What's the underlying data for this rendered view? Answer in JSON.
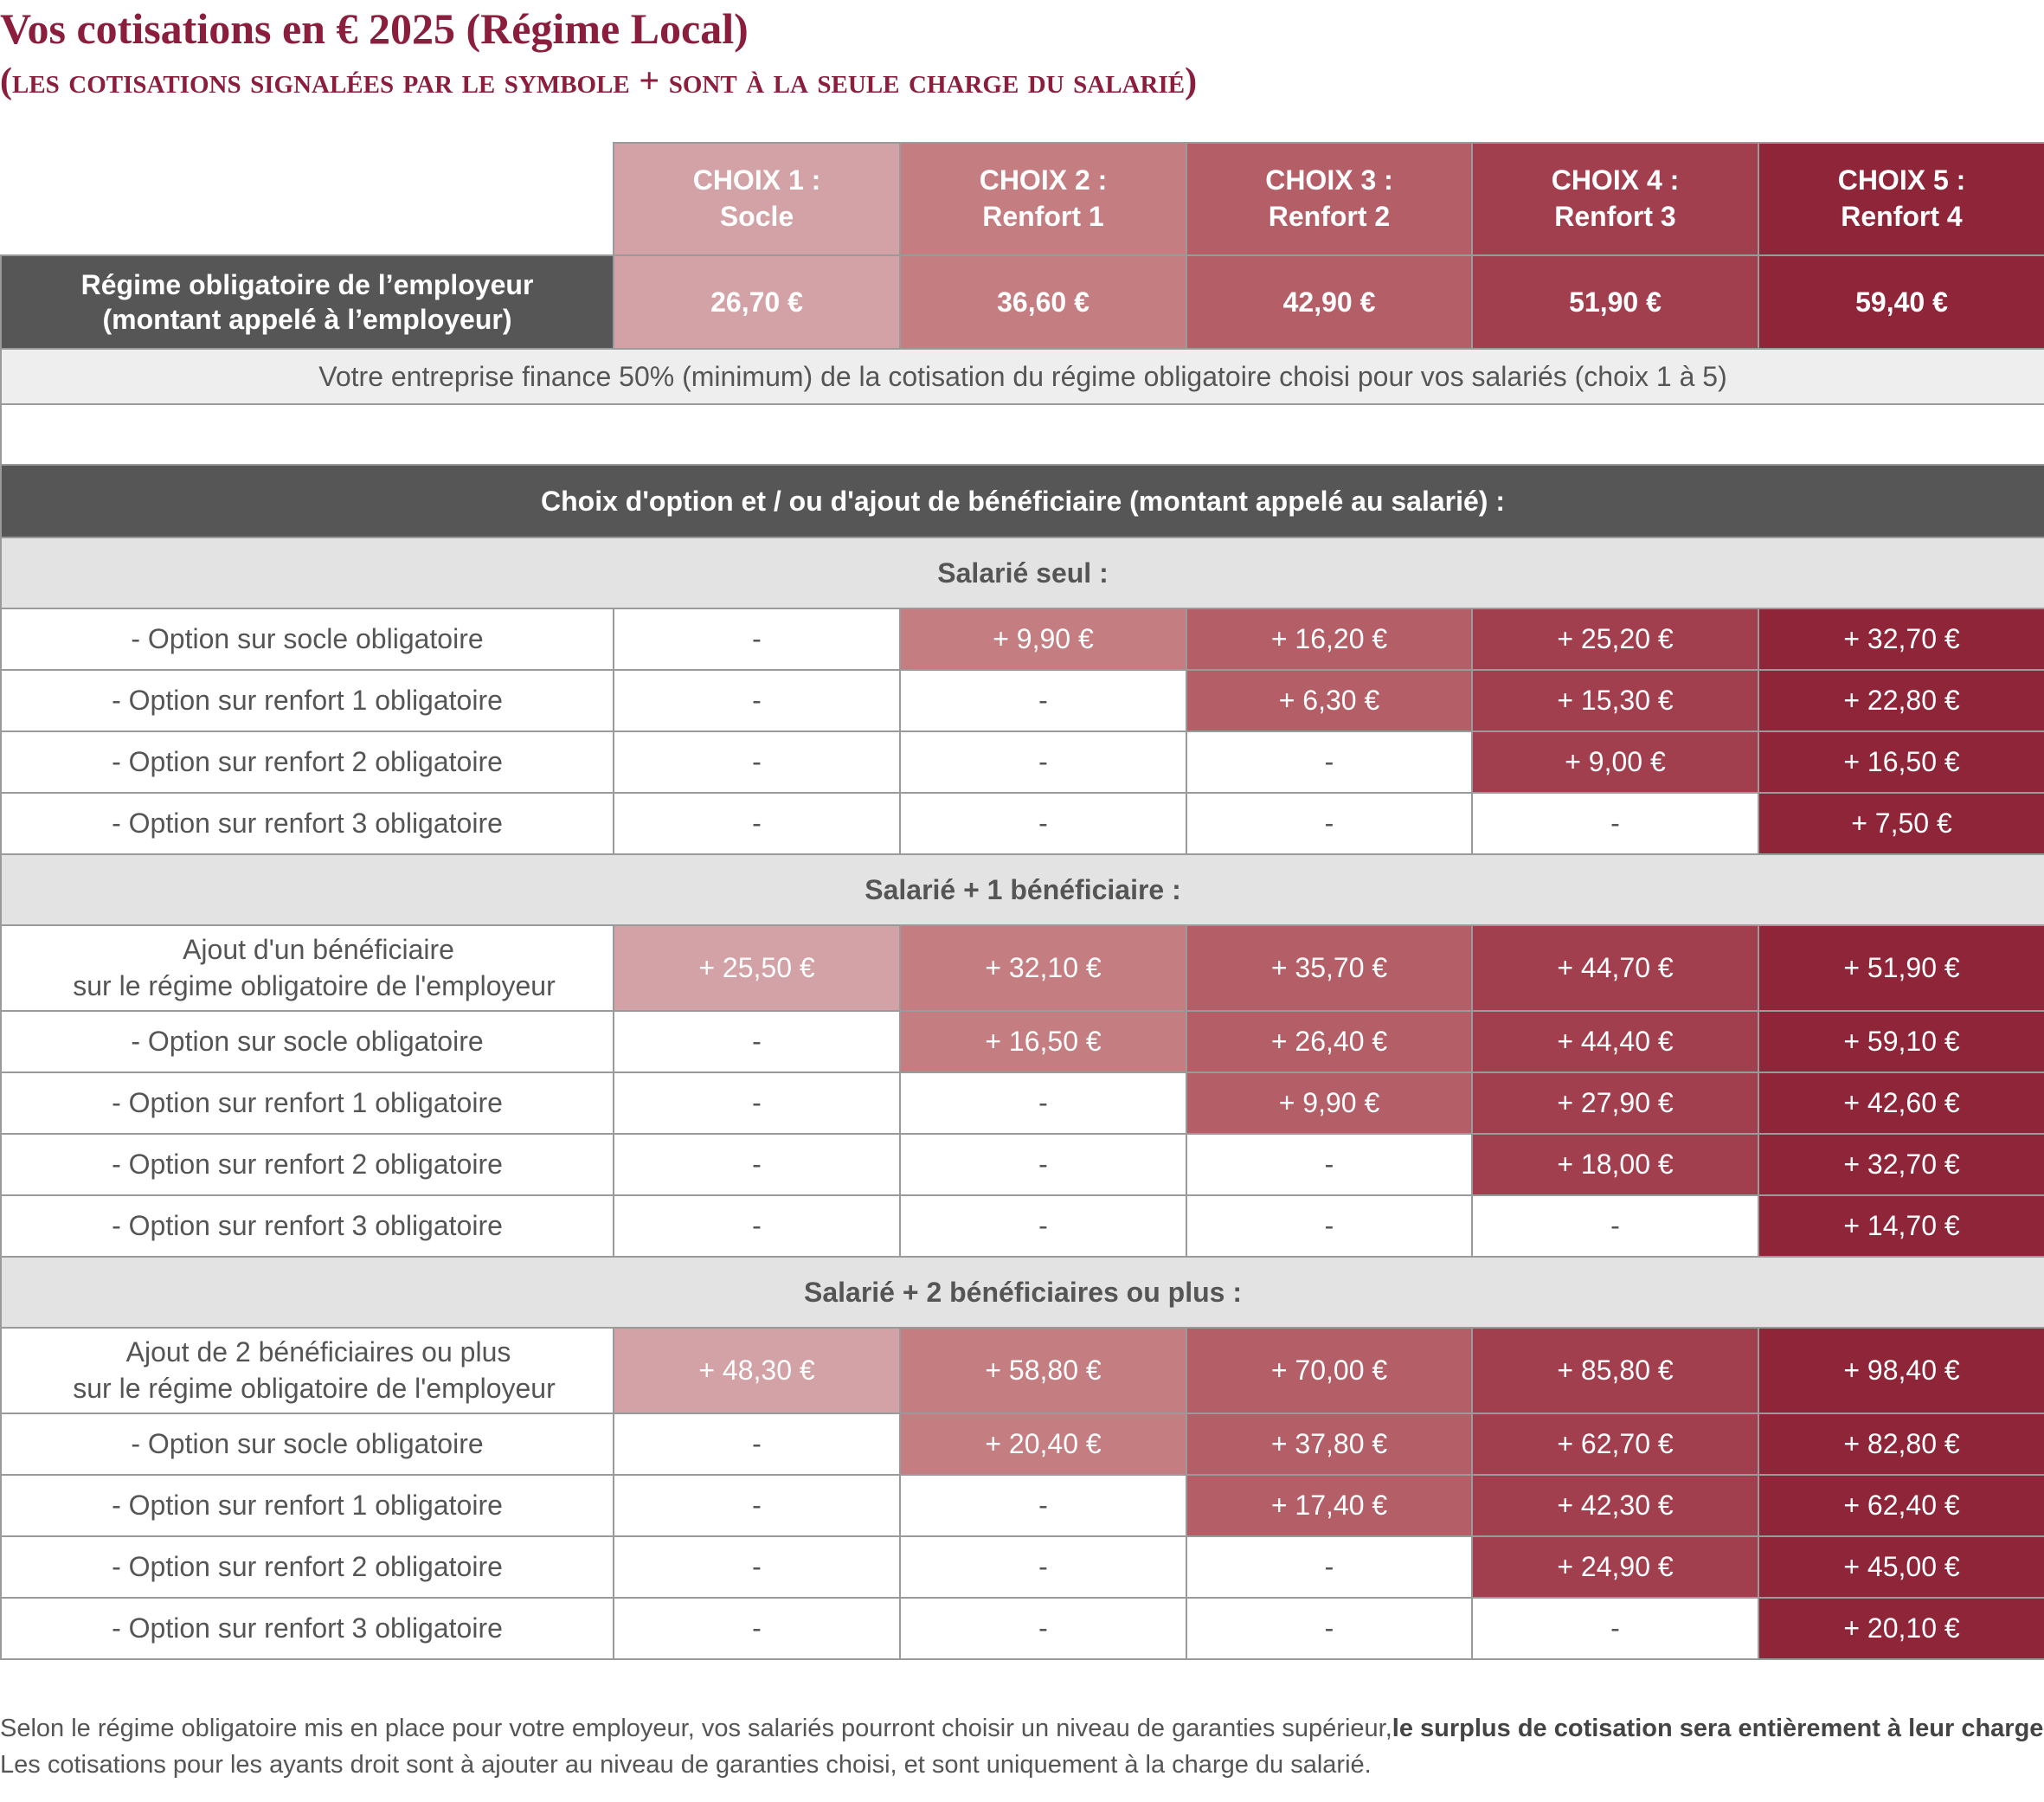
{
  "header": {
    "title": "Vos cotisations en € 2025 (Régime Local)",
    "subtitle": "(les cotisations signalées par le symbole + sont à la seule charge du salarié)"
  },
  "colors": {
    "brand": "#8a1e3c",
    "choix_1": "#d3a2a6",
    "choix_2": "#c47d81",
    "choix_3": "#b45e67",
    "choix_4": "#a23f4f",
    "choix_5": "#8e2539",
    "dark_header": "#565656",
    "group_header": "#e3e3e3"
  },
  "choices": [
    {
      "line1": "CHOIX 1 :",
      "line2": "Socle"
    },
    {
      "line1": "CHOIX 2 :",
      "line2": "Renfort 1"
    },
    {
      "line1": "CHOIX 3 :",
      "line2": "Renfort 2"
    },
    {
      "line1": "CHOIX 4 :",
      "line2": "Renfort 3"
    },
    {
      "line1": "CHOIX 5 :",
      "line2": "Renfort 4"
    }
  ],
  "employer": {
    "label_line1": "Régime obligatoire de l’employeur",
    "label_line2": "(montant appelé à l’employeur)",
    "values": [
      "26,70 €",
      "36,60 €",
      "42,90 €",
      "51,90 €",
      "59,40 €"
    ]
  },
  "note": "Votre entreprise finance 50% (minimum) de la cotisation du régime obligatoire choisi pour vos salariés (choix 1 à 5)",
  "option_header": "Choix d'option et / ou d'ajout de bénéficiaire (montant appelé au salarié) :",
  "groups": [
    {
      "title": "Salarié seul :",
      "rows": [
        {
          "label": "- Option sur socle obligatoire",
          "values": [
            "-",
            "+ 9,90 €",
            "+ 16,20 €",
            "+ 25,20 €",
            "+ 32,70 €"
          ]
        },
        {
          "label": "- Option sur renfort 1 obligatoire",
          "values": [
            "-",
            "-",
            "+ 6,30 €",
            "+ 15,30 €",
            "+ 22,80 €"
          ]
        },
        {
          "label": "- Option sur renfort 2 obligatoire",
          "values": [
            "-",
            "-",
            "-",
            "+ 9,00 €",
            "+ 16,50 €"
          ]
        },
        {
          "label": "- Option sur renfort 3 obligatoire",
          "values": [
            "-",
            "-",
            "-",
            "-",
            "+ 7,50 €"
          ]
        }
      ]
    },
    {
      "title": "Salarié + 1 bénéficiaire :",
      "add_row": {
        "label_line1": "Ajout d'un bénéficiaire",
        "label_line2": "sur le régime obligatoire de l'employeur",
        "values": [
          "+ 25,50 €",
          "+ 32,10 €",
          "+ 35,70 €",
          "+ 44,70 €",
          "+ 51,90 €"
        ]
      },
      "rows": [
        {
          "label": "- Option sur socle obligatoire",
          "values": [
            "-",
            "+ 16,50 €",
            "+ 26,40 €",
            "+ 44,40 €",
            "+ 59,10 €"
          ]
        },
        {
          "label": "- Option sur renfort 1 obligatoire",
          "values": [
            "-",
            "-",
            "+ 9,90 €",
            "+ 27,90 €",
            "+ 42,60 €"
          ]
        },
        {
          "label": "- Option sur renfort 2 obligatoire",
          "values": [
            "-",
            "-",
            "-",
            "+ 18,00 €",
            "+ 32,70 €"
          ]
        },
        {
          "label": "- Option sur renfort 3 obligatoire",
          "values": [
            "-",
            "-",
            "-",
            "-",
            "+ 14,70 €"
          ]
        }
      ]
    },
    {
      "title": "Salarié + 2 bénéficiaires ou plus :",
      "add_row": {
        "label_line1": "Ajout de 2 bénéficiaires ou plus",
        "label_line2": "sur le régime obligatoire de l'employeur",
        "values": [
          "+ 48,30 €",
          "+ 58,80 €",
          "+ 70,00 €",
          "+ 85,80 €",
          "+ 98,40 €"
        ]
      },
      "rows": [
        {
          "label": "- Option sur socle obligatoire",
          "values": [
            "-",
            "+ 20,40 €",
            "+ 37,80 €",
            "+ 62,70 €",
            "+ 82,80 €"
          ]
        },
        {
          "label": "- Option sur renfort 1 obligatoire",
          "values": [
            "-",
            "-",
            "+ 17,40 €",
            "+ 42,30 €",
            "+ 62,40 €"
          ]
        },
        {
          "label": "- Option sur renfort 2 obligatoire",
          "values": [
            "-",
            "-",
            "-",
            "+ 24,90 €",
            "+ 45,00 €"
          ]
        },
        {
          "label": "- Option sur renfort 3 obligatoire",
          "values": [
            "-",
            "-",
            "-",
            "-",
            "+ 20,10 €"
          ]
        }
      ]
    }
  ],
  "footnote": {
    "line1_normal": "Selon le régime obligatoire mis en place pour votre employeur, vos salariés pourront choisir un niveau de garanties supérieur,",
    "line1_bold": "le surplus de cotisation sera entièrement à leur charge.",
    "line2": "Les cotisations pour les ayants droit sont à ajouter au niveau de garanties choisi, et sont uniquement à la charge du salarié."
  }
}
